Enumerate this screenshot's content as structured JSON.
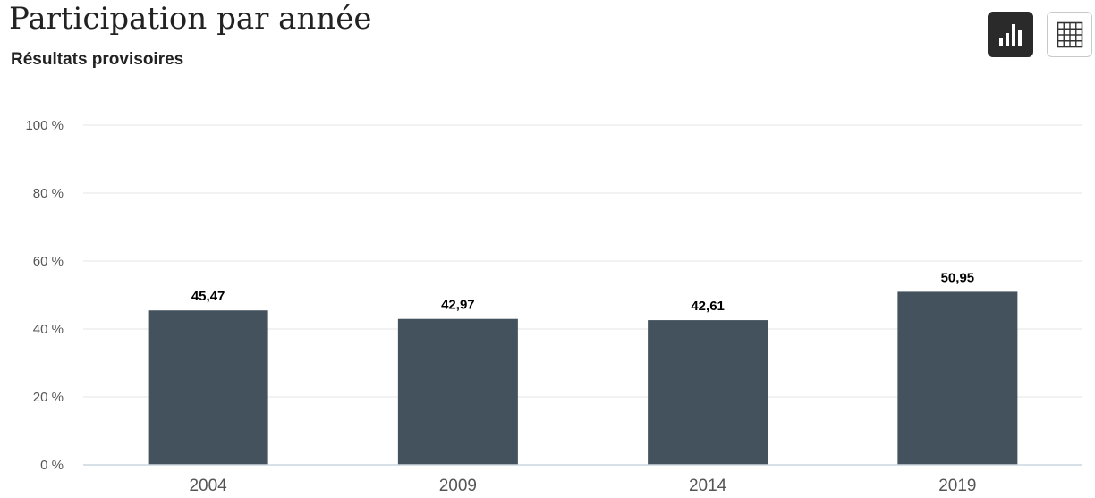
{
  "header": {
    "title": "Participation par année",
    "subtitle": "Résultats provisoires"
  },
  "controls": {
    "chart_icon": "bar-chart-icon",
    "table_icon": "table-grid-icon"
  },
  "colors": {
    "bar": "#44525e",
    "grid": "#e6e6e6",
    "axis": "#ccd6e0",
    "chart_button_bg": "#2a2a2a"
  },
  "chart_data": {
    "type": "bar",
    "title": "Participation par année",
    "subtitle": "Résultats provisoires",
    "xlabel": "",
    "ylabel": "",
    "categories": [
      "2004",
      "2009",
      "2014",
      "2019"
    ],
    "values": [
      45.47,
      42.97,
      42.61,
      50.95
    ],
    "value_labels": [
      "45,47",
      "42,97",
      "42,61",
      "50,95"
    ],
    "ylim": [
      0,
      100
    ],
    "yticks": [
      0,
      20,
      40,
      60,
      80,
      100
    ],
    "ytick_labels": [
      "0 %",
      "20 %",
      "40 %",
      "60 %",
      "80 %",
      "100 %"
    ],
    "grid": true,
    "legend": "none"
  }
}
